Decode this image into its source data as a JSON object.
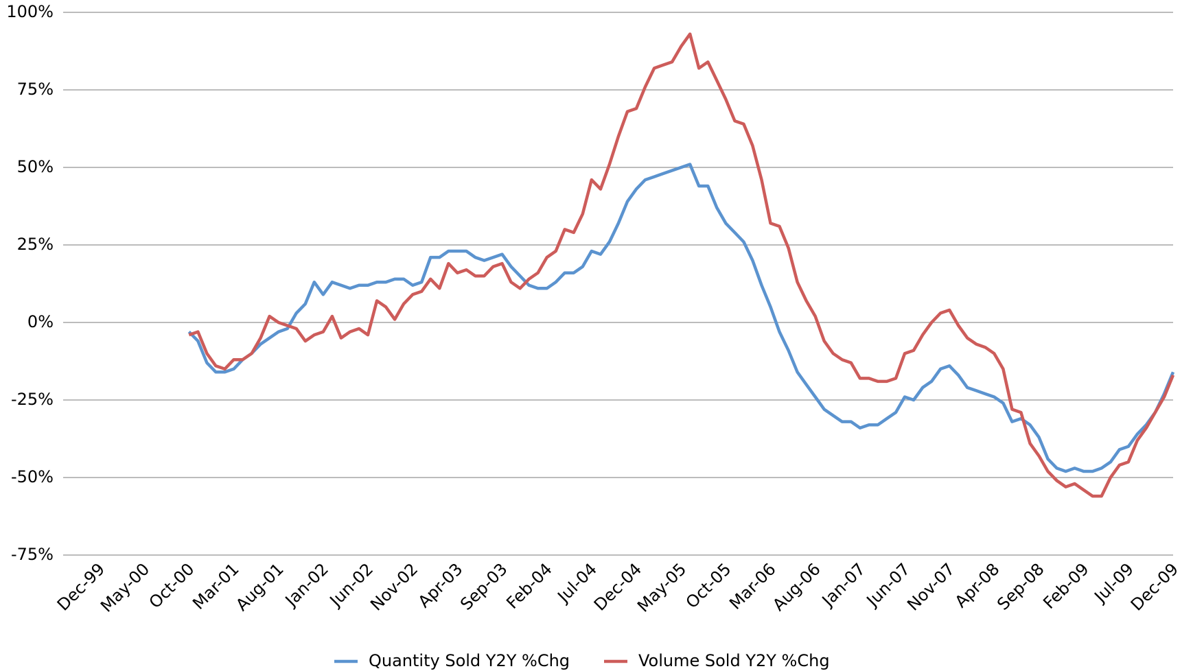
{
  "chart_data": {
    "type": "line",
    "categories": [
      "Dec-99",
      null,
      null,
      null,
      null,
      "May-00",
      null,
      null,
      null,
      null,
      "Oct-00",
      null,
      null,
      null,
      null,
      "Mar-01",
      null,
      null,
      null,
      null,
      "Aug-01",
      null,
      null,
      null,
      null,
      "Jan-02",
      null,
      null,
      null,
      null,
      "Jun-02",
      null,
      null,
      null,
      null,
      "Nov-02",
      null,
      null,
      null,
      null,
      "Apr-03",
      null,
      null,
      null,
      null,
      "Sep-03",
      null,
      null,
      null,
      null,
      "Feb-04",
      null,
      null,
      null,
      null,
      "Jul-04",
      null,
      null,
      null,
      null,
      "Dec-04",
      null,
      null,
      null,
      null,
      "May-05",
      null,
      null,
      null,
      null,
      "Oct-05",
      null,
      null,
      null,
      null,
      "Mar-06",
      null,
      null,
      null,
      null,
      "Aug-06",
      null,
      null,
      null,
      null,
      "Jan-07",
      null,
      null,
      null,
      null,
      "Jun-07",
      null,
      null,
      null,
      null,
      "Nov-07",
      null,
      null,
      null,
      null,
      "Apr-08",
      null,
      null,
      null,
      null,
      "Sep-08",
      null,
      null,
      null,
      null,
      "Feb-09",
      null,
      null,
      null,
      null,
      "Jul-09",
      null,
      null,
      null,
      null,
      "Dec-09"
    ],
    "series": [
      {
        "name": "Quantity Sold Y2Y %Chg",
        "color": "#5b93cf",
        "values": [
          null,
          null,
          null,
          null,
          null,
          null,
          null,
          null,
          null,
          null,
          -3,
          -6,
          -13,
          -16,
          -16,
          -15,
          -12,
          -10,
          -7,
          -5,
          -3,
          -2,
          3,
          6,
          13,
          9,
          13,
          12,
          11,
          12,
          12,
          13,
          13,
          14,
          14,
          12,
          13,
          21,
          21,
          23,
          23,
          23,
          21,
          20,
          21,
          22,
          18,
          15,
          12,
          11,
          11,
          13,
          16,
          16,
          18,
          23,
          22,
          26,
          32,
          39,
          43,
          46,
          47,
          48,
          49,
          50,
          51,
          44,
          44,
          37,
          32,
          29,
          26,
          20,
          12,
          5,
          -3,
          -9,
          -16,
          -20,
          -24,
          -28,
          -30,
          -32,
          -32,
          -34,
          -33,
          -33,
          -31,
          -29,
          -24,
          -25,
          -21,
          -19,
          -15,
          -14,
          -17,
          -21,
          -22,
          -23,
          -24,
          -26,
          -32,
          -31,
          -33,
          -37,
          -44,
          -47,
          -48,
          -47,
          -48,
          -48,
          -47,
          -45,
          -41,
          -40,
          -36,
          -33,
          -29,
          -23,
          -16
        ]
      },
      {
        "name": "Volume Sold Y2Y %Chg",
        "color": "#cd5c5a",
        "values": [
          null,
          null,
          null,
          null,
          null,
          null,
          null,
          null,
          null,
          null,
          -4,
          -3,
          -10,
          -14,
          -15,
          -12,
          -12,
          -10,
          -5,
          2,
          0,
          -1,
          -2,
          -6,
          -4,
          -3,
          2,
          -5,
          -3,
          -2,
          -4,
          7,
          5,
          1,
          6,
          9,
          10,
          14,
          11,
          19,
          16,
          17,
          15,
          15,
          18,
          19,
          13,
          11,
          14,
          16,
          21,
          23,
          30,
          29,
          35,
          46,
          43,
          51,
          60,
          68,
          69,
          76,
          82,
          83,
          84,
          89,
          93,
          82,
          84,
          78,
          72,
          65,
          64,
          57,
          46,
          32,
          31,
          24,
          13,
          7,
          2,
          -6,
          -10,
          -12,
          -13,
          -18,
          -18,
          -19,
          -19,
          -18,
          -10,
          -9,
          -4,
          0,
          3,
          4,
          -1,
          -5,
          -7,
          -8,
          -10,
          -15,
          -28,
          -29,
          -39,
          -43,
          -48,
          -51,
          -53,
          -52,
          -54,
          -56,
          -56,
          -50,
          -46,
          -45,
          -38,
          -34,
          -29,
          -24,
          -17
        ]
      }
    ],
    "ylim": [
      -75,
      100
    ],
    "yticks": [
      {
        "value": -75,
        "label": "-75%"
      },
      {
        "value": -50,
        "label": "-50%"
      },
      {
        "value": -25,
        "label": "-25%"
      },
      {
        "value": 0,
        "label": "0%"
      },
      {
        "value": 25,
        "label": "25%"
      },
      {
        "value": 50,
        "label": "50%"
      },
      {
        "value": 75,
        "label": "75%"
      },
      {
        "value": 100,
        "label": "100%"
      }
    ],
    "grid": true,
    "legend": "bottom"
  }
}
